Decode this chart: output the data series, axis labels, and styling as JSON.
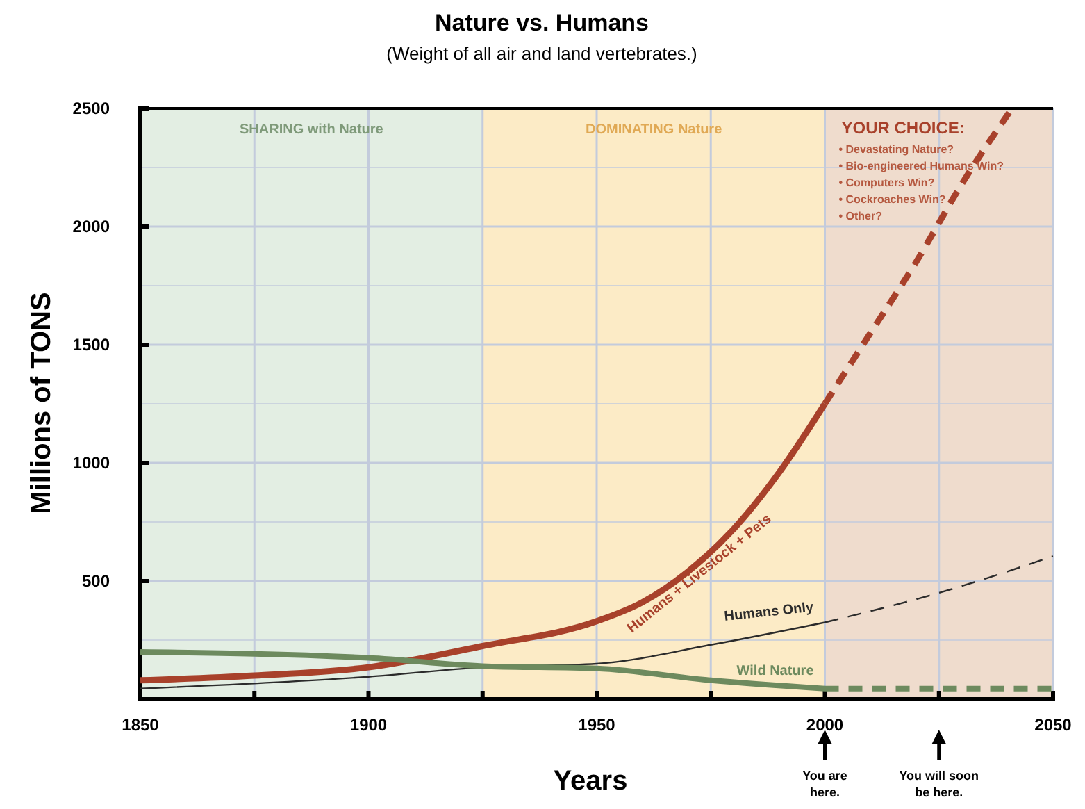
{
  "chart_data": {
    "type": "line",
    "title": "Nature vs. Humans",
    "subtitle": "(Weight of all air and land vertebrates.)",
    "xlabel": "Years",
    "ylabel": "Millions of TONS",
    "xlim": [
      1850,
      2050
    ],
    "xticks": [
      1850,
      {
        "value": 1875,
        "label": null
      },
      1900,
      {
        "value": 1925,
        "label": null
      },
      1950,
      {
        "value": 1975,
        "label": null
      },
      2000,
      {
        "value": 2025,
        "label": null
      },
      2050
    ],
    "ylim": [
      0,
      2500
    ],
    "yticks": [
      500,
      1000,
      1500,
      2000,
      2500
    ],
    "grid": true,
    "legend": false,
    "series": [
      {
        "name": "Humans + Livestock + Pets",
        "color": "#a8412b",
        "x": [
          1850,
          1875,
          1900,
          1925,
          1950,
          1960,
          1970,
          1980,
          1990,
          2000
        ],
        "values": [
          80,
          100,
          135,
          225,
          330,
          410,
          540,
          720,
          960,
          1250
        ]
      },
      {
        "color": "#a8412b",
        "line_style": "dashed",
        "x": [
          2000,
          2010,
          2020,
          2030,
          2041
        ],
        "values": [
          1250,
          1550,
          1850,
          2180,
          2500
        ]
      },
      {
        "name": "Humans Only",
        "color": "#2b2b2b",
        "x": [
          1850,
          1900,
          1925,
          1950,
          1975,
          2000
        ],
        "values": [
          45,
          95,
          135,
          150,
          230,
          325
        ]
      },
      {
        "color": "#2b2b2b",
        "line_style": "dashed",
        "x": [
          2000,
          2025,
          2050
        ],
        "values": [
          325,
          450,
          605
        ]
      },
      {
        "name": "Wild Nature",
        "color": "#6d8a5e",
        "x": [
          1850,
          1900,
          1925,
          1950,
          1975,
          2000
        ],
        "values": [
          200,
          175,
          140,
          130,
          80,
          45
        ]
      },
      {
        "color": "#6d8a5e",
        "line_style": "dashed",
        "x": [
          2000,
          2050
        ],
        "values": [
          45,
          45
        ]
      }
    ],
    "bands": [
      {
        "axis": "x",
        "from": 1850,
        "to": 1925,
        "label": "SHARING with Nature",
        "color": "#e3eee3"
      },
      {
        "axis": "x",
        "from": 1925,
        "to": 2000,
        "label": "DOMINATING Nature",
        "color": "#fcebc6"
      },
      {
        "axis": "x",
        "from": 2000,
        "to": 2050,
        "label": "YOUR CHOICE:",
        "color": "#efdccd"
      }
    ],
    "annotations": [
      "• Devastating Nature?",
      "• Bio-engineered Humans Win?",
      "• Computers Win?",
      "• Cockroaches Win?",
      "• Other?",
      "You are here.",
      "You will soon be here."
    ]
  }
}
